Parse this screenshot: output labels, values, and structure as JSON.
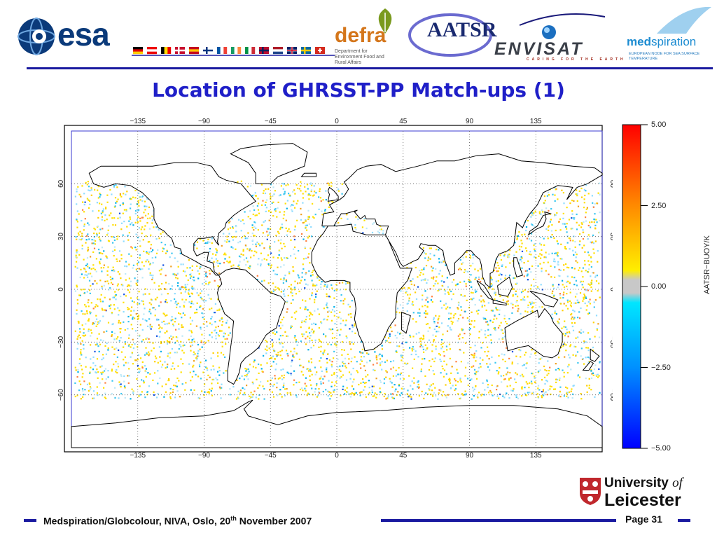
{
  "header": {
    "esa_wordmark": "esa",
    "defra_wordmark": "defra",
    "defra_subtitle": "Department for Environment Food and Rural Affairs",
    "aatsr_wordmark": "AATSR",
    "envisat_wordmark": "ENVISAT",
    "envisat_tagline": "CARING FOR THE EARTH",
    "medspiration_wordmark_bold": "med",
    "medspiration_wordmark_light": "spiration",
    "medspiration_subtitle": "EUROPEAN NODE FOR SEA SURFACE TEMPERATURE",
    "flag_icons": [
      "germany-flag-icon",
      "austria-flag-icon",
      "belgium-flag-icon",
      "denmark-flag-icon",
      "spain-flag-icon",
      "finland-flag-icon",
      "france-flag-icon",
      "ireland-flag-icon",
      "italy-flag-icon",
      "norway-flag-icon",
      "netherlands-flag-icon",
      "uk-flag-icon",
      "sweden-flag-icon",
      "switzerland-flag-icon"
    ]
  },
  "slide": {
    "title": "Location of GHRSST-PP Match-ups (1)"
  },
  "map": {
    "projection": "equirectangular",
    "lon_ticks": [
      -135,
      -90,
      -45,
      0,
      45,
      90,
      135
    ],
    "lat_ticks": [
      60,
      30,
      0,
      -30,
      -60
    ],
    "lon_tick_labels": [
      "−135",
      "−90",
      "−45",
      "0",
      "45",
      "90",
      "135"
    ],
    "lat_tick_labels": [
      "60",
      "30",
      "0",
      "−30",
      "−60"
    ],
    "grid": "dotted",
    "land_color": "#ffffff",
    "coast_color": "#000000",
    "point_colors": [
      "#ffe000",
      "#ffd000",
      "#8fdcff",
      "#3ac6f0",
      "#bde8f7",
      "#00b0e8",
      "#ffffff",
      "#f0a020",
      "#ff8040",
      "#1050e0"
    ]
  },
  "colorbar": {
    "label": "AATSR−BUOY/K",
    "ticks": [
      "5.00",
      "2.50",
      "0.00",
      "−2.50",
      "−5.00"
    ],
    "range": [
      -5,
      5
    ],
    "colors": [
      "#ff0000",
      "#ff8800",
      "#ffee00",
      "#c8c8c8",
      "#00e0ff",
      "#0090ff",
      "#0000ff"
    ]
  },
  "footer": {
    "text": "Medspiration/Globcolour, NIVA, Oslo, 20",
    "sup": "th",
    "text_after": " November 2007",
    "page": "Page 31",
    "university_line1": "University",
    "university_of": "of",
    "university_line2": "Leicester"
  }
}
